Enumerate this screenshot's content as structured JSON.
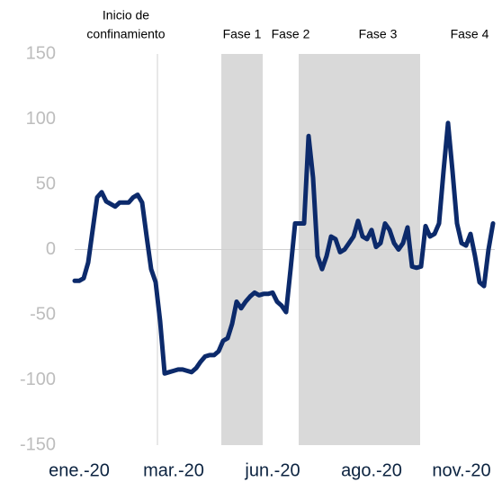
{
  "chart_data": {
    "type": "line",
    "categories": [
      null,
      "ene.-20",
      null,
      null,
      null,
      null,
      null,
      null,
      null,
      null,
      null,
      null,
      null,
      null,
      null,
      null,
      null,
      null,
      null,
      null,
      null,
      null,
      "mar.-20",
      null,
      null,
      null,
      null,
      null,
      null,
      null,
      null,
      null,
      null,
      null,
      null,
      null,
      null,
      null,
      null,
      null,
      null,
      null,
      null,
      null,
      "jun.-20",
      null,
      null,
      null,
      null,
      null,
      null,
      null,
      null,
      null,
      null,
      null,
      null,
      null,
      null,
      null,
      null,
      null,
      null,
      null,
      null,
      null,
      "ago.-20",
      null,
      null,
      null,
      null,
      null,
      null,
      null,
      null,
      null,
      null,
      null,
      null,
      null,
      null,
      null,
      null,
      null,
      null,
      null,
      "nov.-20",
      null,
      null,
      null,
      null,
      null,
      null,
      null
    ],
    "series": [
      {
        "color": "#0c2a6b",
        "values": [
          -24,
          -24,
          -22,
          -10,
          15,
          40,
          44,
          37,
          35,
          33,
          36,
          36,
          36,
          40,
          42,
          36,
          10,
          -15,
          -25,
          -55,
          -95,
          -94,
          -93,
          -92,
          -92,
          -93,
          -94,
          -91,
          -86,
          -82,
          -81,
          -81,
          -78,
          -70,
          -68,
          -57,
          -40,
          -45,
          -40,
          -36,
          -33,
          -35,
          -34,
          -34,
          -33,
          -40,
          -43,
          -48,
          -15,
          20,
          20,
          20,
          87,
          55,
          -5,
          -15,
          -5,
          10,
          8,
          -2,
          0,
          5,
          10,
          22,
          10,
          8,
          15,
          2,
          5,
          20,
          15,
          5,
          0,
          5,
          17,
          -13,
          -14,
          -13,
          18,
          10,
          12,
          20,
          60,
          97,
          60,
          20,
          5,
          3,
          12,
          -5,
          -25,
          -28,
          0,
          20
        ]
      }
    ],
    "ylim": [
      -150,
      150
    ],
    "yticks": [
      -150,
      -100,
      -50,
      0,
      50,
      100,
      150
    ],
    "marker_line": {
      "at": 18.4,
      "lines": [
        "Inicio de",
        "confinamiento"
      ]
    },
    "bands": [
      {
        "start": 32.6,
        "end": 41.8
      },
      {
        "start": 49.8,
        "end": 76.8
      }
    ],
    "phase_labels": [
      {
        "text": "Fase 1",
        "at": 37.2
      },
      {
        "text": "Fase 2",
        "at": 48
      },
      {
        "text": "Fase 3",
        "at": 67.4
      },
      {
        "text": "Fase 4",
        "at": 87.8
      }
    ]
  }
}
